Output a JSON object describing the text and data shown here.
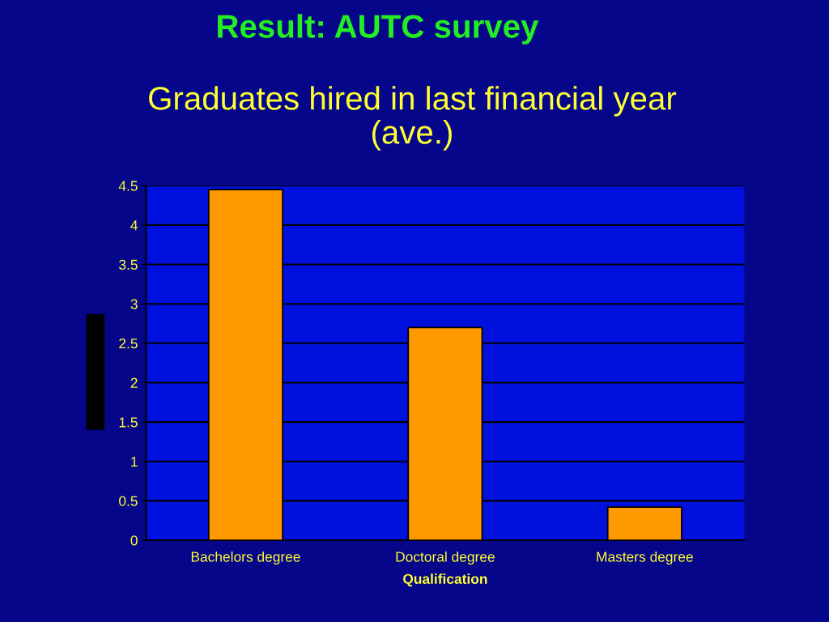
{
  "chart_data": {
    "type": "bar",
    "title": "Result: AUTC survey",
    "subtitle": "Graduates hired in last financial year (ave.)",
    "xlabel": "Qualification",
    "categories": [
      "Bachelors degree",
      "Doctoral degree",
      "Masters degree"
    ],
    "values": [
      4.45,
      2.7,
      0.42
    ],
    "color": "#ff9900",
    "ylim": [
      0,
      4.5
    ],
    "yticks": [
      0,
      0.5,
      1,
      1.5,
      2,
      2.5,
      3,
      3.5,
      4,
      4.5
    ],
    "grid": "y"
  }
}
